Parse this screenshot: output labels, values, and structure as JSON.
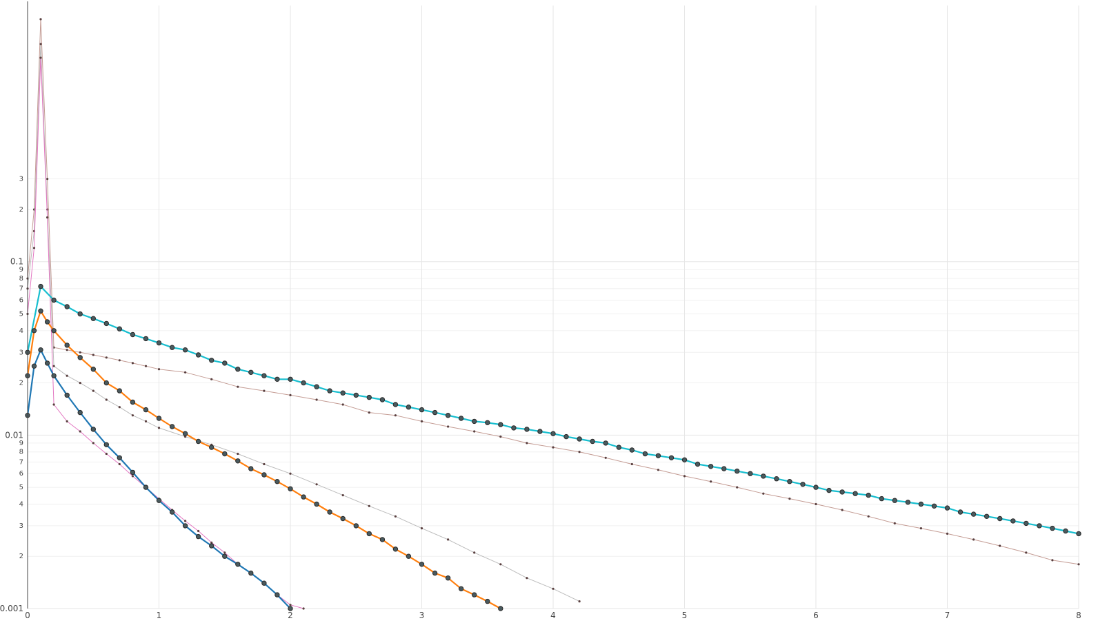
{
  "chart_data": {
    "type": "line",
    "title": "",
    "xlabel": "",
    "ylabel": "",
    "y_scale": "log",
    "xlim": [
      0,
      8
    ],
    "ylim": [
      0.001,
      3
    ],
    "grid": true,
    "legend": "none",
    "x_ticks": [
      "0",
      "1",
      "2",
      "3",
      "4",
      "5",
      "6",
      "7",
      "8"
    ],
    "y_major_ticks": [
      {
        "value": 0.001,
        "label": "0.001"
      },
      {
        "value": 0.01,
        "label": "0.01"
      },
      {
        "value": 0.1,
        "label": "0.1"
      }
    ],
    "y_minor_ticks": [
      {
        "value": 0.002,
        "label": "2"
      },
      {
        "value": 0.003,
        "label": "3"
      },
      {
        "value": 0.004,
        "label": "4"
      },
      {
        "value": 0.005,
        "label": "5"
      },
      {
        "value": 0.006,
        "label": "6"
      },
      {
        "value": 0.007,
        "label": "7"
      },
      {
        "value": 0.008,
        "label": "8"
      },
      {
        "value": 0.009,
        "label": "9"
      },
      {
        "value": 0.02,
        "label": "2"
      },
      {
        "value": 0.03,
        "label": "3"
      },
      {
        "value": 0.04,
        "label": "4"
      },
      {
        "value": 0.05,
        "label": "5"
      },
      {
        "value": 0.06,
        "label": "6"
      },
      {
        "value": 0.07,
        "label": "7"
      },
      {
        "value": 0.08,
        "label": "8"
      },
      {
        "value": 0.09,
        "label": "9"
      },
      {
        "value": 0.2,
        "label": "2"
      },
      {
        "value": 0.3,
        "label": "3"
      }
    ],
    "series": [
      {
        "role": "thick",
        "color": "#17becf",
        "marker": "circle",
        "x": [
          0.0,
          0.1,
          0.2,
          0.3,
          0.4,
          0.5,
          0.6,
          0.7,
          0.8,
          0.9,
          1.0,
          1.1,
          1.2,
          1.3,
          1.4,
          1.5,
          1.6,
          1.7,
          1.8,
          1.9,
          2.0,
          2.1,
          2.2,
          2.3,
          2.4,
          2.5,
          2.6,
          2.7,
          2.8,
          2.9,
          3.0,
          3.1,
          3.2,
          3.3,
          3.4,
          3.5,
          3.6,
          3.7,
          3.8,
          3.9,
          4.0,
          4.1,
          4.2,
          4.3,
          4.4,
          4.5,
          4.6,
          4.7,
          4.8,
          4.9,
          5.0,
          5.1,
          5.2,
          5.3,
          5.4,
          5.5,
          5.6,
          5.7,
          5.8,
          5.9,
          6.0,
          6.1,
          6.2,
          6.3,
          6.4,
          6.5,
          6.6,
          6.7,
          6.8,
          6.9,
          7.0,
          7.1,
          7.2,
          7.3,
          7.4,
          7.5,
          7.6,
          7.7,
          7.8,
          7.9,
          8.0
        ],
        "y": [
          0.03,
          0.072,
          0.06,
          0.055,
          0.05,
          0.047,
          0.044,
          0.041,
          0.038,
          0.036,
          0.034,
          0.032,
          0.031,
          0.029,
          0.027,
          0.026,
          0.024,
          0.023,
          0.022,
          0.021,
          0.021,
          0.02,
          0.019,
          0.018,
          0.0175,
          0.017,
          0.0165,
          0.016,
          0.015,
          0.0145,
          0.014,
          0.0135,
          0.013,
          0.0125,
          0.012,
          0.0118,
          0.0115,
          0.011,
          0.0108,
          0.0105,
          0.0102,
          0.0098,
          0.0095,
          0.0092,
          0.009,
          0.0085,
          0.0082,
          0.0078,
          0.0076,
          0.0074,
          0.0072,
          0.0068,
          0.0066,
          0.0064,
          0.0062,
          0.006,
          0.0058,
          0.0056,
          0.0054,
          0.0052,
          0.005,
          0.0048,
          0.0047,
          0.0046,
          0.0045,
          0.0043,
          0.0042,
          0.0041,
          0.004,
          0.0039,
          0.0038,
          0.0036,
          0.0035,
          0.0034,
          0.0033,
          0.0032,
          0.0031,
          0.003,
          0.0029,
          0.0028,
          0.0027
        ]
      },
      {
        "role": "thick",
        "color": "#ff7f0e",
        "marker": "circle",
        "x": [
          0.0,
          0.05,
          0.1,
          0.15,
          0.2,
          0.3,
          0.4,
          0.5,
          0.6,
          0.7,
          0.8,
          0.9,
          1.0,
          1.1,
          1.2,
          1.3,
          1.4,
          1.5,
          1.6,
          1.7,
          1.8,
          1.9,
          2.0,
          2.1,
          2.2,
          2.3,
          2.4,
          2.5,
          2.6,
          2.7,
          2.8,
          2.9,
          3.0,
          3.1,
          3.2,
          3.3,
          3.4,
          3.5,
          3.6
        ],
        "y": [
          0.022,
          0.04,
          0.052,
          0.045,
          0.04,
          0.033,
          0.028,
          0.024,
          0.02,
          0.018,
          0.0155,
          0.014,
          0.0125,
          0.0112,
          0.0102,
          0.0092,
          0.0085,
          0.0078,
          0.0071,
          0.0064,
          0.0059,
          0.0054,
          0.0049,
          0.0044,
          0.004,
          0.0036,
          0.0033,
          0.003,
          0.0027,
          0.0025,
          0.0022,
          0.002,
          0.0018,
          0.0016,
          0.0015,
          0.0013,
          0.0012,
          0.0011,
          0.001
        ]
      },
      {
        "role": "thick",
        "color": "#1f77b4",
        "marker": "circle",
        "x": [
          0.0,
          0.05,
          0.1,
          0.15,
          0.2,
          0.3,
          0.4,
          0.5,
          0.6,
          0.7,
          0.8,
          0.9,
          1.0,
          1.1,
          1.2,
          1.3,
          1.4,
          1.5,
          1.6,
          1.7,
          1.8,
          1.9,
          2.0
        ],
        "y": [
          0.013,
          0.025,
          0.031,
          0.026,
          0.022,
          0.017,
          0.0135,
          0.0108,
          0.0088,
          0.0074,
          0.0061,
          0.005,
          0.0042,
          0.0036,
          0.003,
          0.0026,
          0.0023,
          0.002,
          0.0018,
          0.0016,
          0.0014,
          0.0012,
          0.001
        ]
      },
      {
        "role": "thin",
        "color": "#c49c94",
        "marker": "dot",
        "x": [
          0.0,
          0.05,
          0.1,
          0.15,
          0.2,
          0.3,
          0.4,
          0.5,
          0.6,
          0.7,
          0.8,
          0.9,
          1.0,
          1.2,
          1.4,
          1.6,
          1.8,
          2.0,
          2.2,
          2.4,
          2.6,
          2.8,
          3.0,
          3.2,
          3.4,
          3.6,
          3.8,
          4.0,
          4.2,
          4.4,
          4.6,
          4.8,
          5.0,
          5.2,
          5.4,
          5.6,
          5.8,
          6.0,
          6.2,
          6.4,
          6.6,
          6.8,
          7.0,
          7.2,
          7.4,
          7.6,
          7.8,
          8.0
        ],
        "y": [
          0.08,
          0.2,
          2.5,
          0.3,
          0.032,
          0.031,
          0.03,
          0.029,
          0.028,
          0.027,
          0.026,
          0.025,
          0.024,
          0.023,
          0.021,
          0.019,
          0.018,
          0.017,
          0.016,
          0.015,
          0.0135,
          0.013,
          0.012,
          0.0112,
          0.0105,
          0.0098,
          0.009,
          0.0085,
          0.008,
          0.0074,
          0.0068,
          0.0063,
          0.0058,
          0.0054,
          0.005,
          0.0046,
          0.0043,
          0.004,
          0.0037,
          0.0034,
          0.0031,
          0.0029,
          0.0027,
          0.0025,
          0.0023,
          0.0021,
          0.0019,
          0.0018
        ]
      },
      {
        "role": "thin",
        "color": "#bbbbbb",
        "marker": "dot",
        "x": [
          0.0,
          0.05,
          0.1,
          0.15,
          0.2,
          0.3,
          0.4,
          0.5,
          0.6,
          0.7,
          0.8,
          0.9,
          1.0,
          1.2,
          1.4,
          1.6,
          1.8,
          2.0,
          2.2,
          2.4,
          2.6,
          2.8,
          3.0,
          3.2,
          3.4,
          3.6,
          3.8,
          4.0,
          4.2
        ],
        "y": [
          0.07,
          0.15,
          1.8,
          0.2,
          0.025,
          0.022,
          0.02,
          0.018,
          0.016,
          0.0145,
          0.013,
          0.012,
          0.011,
          0.0098,
          0.0088,
          0.0078,
          0.0068,
          0.006,
          0.0052,
          0.0045,
          0.0039,
          0.0034,
          0.0029,
          0.0025,
          0.0021,
          0.0018,
          0.0015,
          0.0013,
          0.0011
        ]
      },
      {
        "role": "thin",
        "color": "#e377c2",
        "marker": "dot",
        "x": [
          0.0,
          0.05,
          0.1,
          0.15,
          0.2,
          0.3,
          0.4,
          0.5,
          0.6,
          0.7,
          0.8,
          0.9,
          1.0,
          1.1,
          1.2,
          1.3,
          1.4,
          1.5,
          1.6,
          1.7,
          1.8,
          1.9,
          2.0,
          2.1
        ],
        "y": [
          0.05,
          0.12,
          1.5,
          0.18,
          0.015,
          0.012,
          0.0105,
          0.009,
          0.0078,
          0.0068,
          0.0058,
          0.005,
          0.0043,
          0.0037,
          0.0032,
          0.0028,
          0.0024,
          0.0021,
          0.0018,
          0.0016,
          0.0014,
          0.0012,
          0.00105,
          0.001
        ]
      }
    ]
  }
}
